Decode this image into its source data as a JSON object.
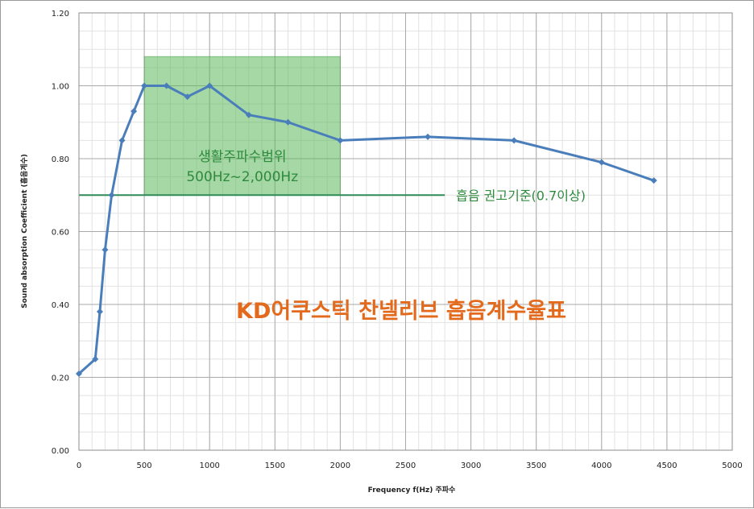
{
  "chart_data": {
    "type": "line",
    "title": "KD어쿠스틱 찬넬리브 흡음계수율표",
    "xlabel": "Frequency f(Hz) 주파수",
    "ylabel": "Sound absorption  Coefficient (흡음계수)",
    "xlim": [
      0,
      5000
    ],
    "ylim": [
      0,
      1.2
    ],
    "x_ticks": [
      0,
      500,
      1000,
      1500,
      2000,
      2500,
      3000,
      3500,
      4000,
      4500,
      5000
    ],
    "y_ticks": [
      0.0,
      0.2,
      0.4,
      0.6,
      0.8,
      1.0,
      1.2
    ],
    "x_tick_labels": [
      "0",
      "500",
      "1000",
      "1500",
      "2000",
      "2500",
      "3000",
      "3500",
      "4000",
      "4500",
      "5000"
    ],
    "y_tick_labels": [
      "0.00",
      "0.20",
      "0.40",
      "0.60",
      "0.80",
      "1.00",
      "1.20"
    ],
    "grid": true,
    "series": [
      {
        "color": "#4a7ebb",
        "x": [
          0,
          125,
          160,
          200,
          250,
          330,
          420,
          500,
          670,
          830,
          1000,
          1300,
          1600,
          2000,
          2670,
          3330,
          4000,
          4400
        ],
        "y": [
          0.21,
          0.25,
          0.38,
          0.55,
          0.7,
          0.85,
          0.93,
          1.0,
          1.0,
          0.97,
          1.0,
          0.92,
          0.9,
          0.85,
          0.86,
          0.85,
          0.79,
          0.74
        ]
      }
    ],
    "band": {
      "x_from": 500,
      "x_to": 2000,
      "y_from": 0.7,
      "y_to": 1.08,
      "color": "#5cb85c",
      "label_line1": "생활주파수범위",
      "label_line2": "500Hz~2,000Hz"
    },
    "reference_line": {
      "y": 0.7,
      "x_from": 0,
      "x_to": 2800,
      "color": "#2e8b57",
      "label": "흡음 권고기준(0.7이상)"
    }
  }
}
